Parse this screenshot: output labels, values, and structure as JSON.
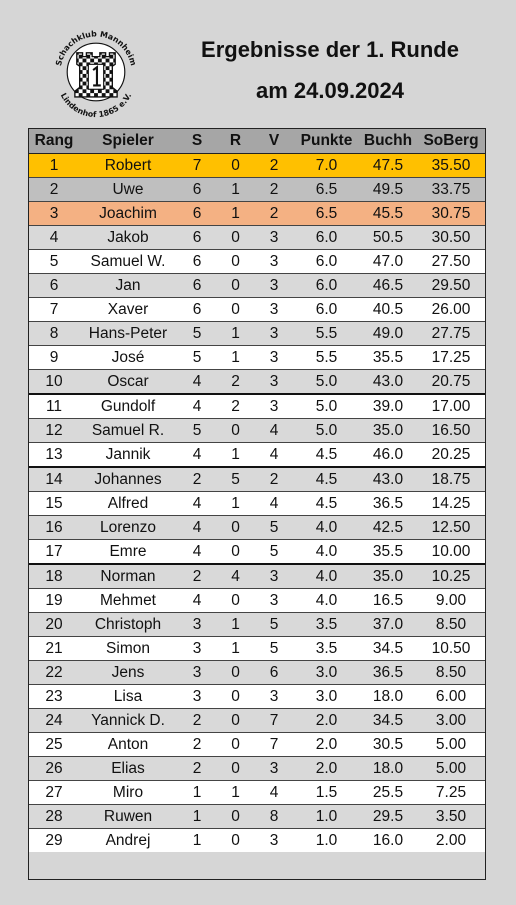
{
  "logo": {
    "top_text": "Schachklub Mannheim",
    "bottom_text": "Lindenhof 1865 e.V."
  },
  "header": {
    "title_line1": "Ergebnisse der 1. Runde",
    "title_line2": "am 24.09.2024"
  },
  "columns": [
    "Rang",
    "Spieler",
    "S",
    "R",
    "V",
    "Punkte",
    "Buchh",
    "SoBerg"
  ],
  "rows": [
    [
      "1",
      "Robert",
      "7",
      "0",
      "2",
      "7.0",
      "47.5",
      "35.50"
    ],
    [
      "2",
      "Uwe",
      "6",
      "1",
      "2",
      "6.5",
      "49.5",
      "33.75"
    ],
    [
      "3",
      "Joachim",
      "6",
      "1",
      "2",
      "6.5",
      "45.5",
      "30.75"
    ],
    [
      "4",
      "Jakob",
      "6",
      "0",
      "3",
      "6.0",
      "50.5",
      "30.50"
    ],
    [
      "5",
      "Samuel W.",
      "6",
      "0",
      "3",
      "6.0",
      "47.0",
      "27.50"
    ],
    [
      "6",
      "Jan",
      "6",
      "0",
      "3",
      "6.0",
      "46.5",
      "29.50"
    ],
    [
      "7",
      "Xaver",
      "6",
      "0",
      "3",
      "6.0",
      "40.5",
      "26.00"
    ],
    [
      "8",
      "Hans-Peter",
      "5",
      "1",
      "3",
      "5.5",
      "49.0",
      "27.75"
    ],
    [
      "9",
      "José",
      "5",
      "1",
      "3",
      "5.5",
      "35.5",
      "17.25"
    ],
    [
      "10",
      "Oscar",
      "4",
      "2",
      "3",
      "5.0",
      "43.0",
      "20.75"
    ],
    [
      "11",
      "Gundolf",
      "4",
      "2",
      "3",
      "5.0",
      "39.0",
      "17.00"
    ],
    [
      "12",
      "Samuel R.",
      "5",
      "0",
      "4",
      "5.0",
      "35.0",
      "16.50"
    ],
    [
      "13",
      "Jannik",
      "4",
      "1",
      "4",
      "4.5",
      "46.0",
      "20.25"
    ],
    [
      "14",
      "Johannes",
      "2",
      "5",
      "2",
      "4.5",
      "43.0",
      "18.75"
    ],
    [
      "15",
      "Alfred",
      "4",
      "1",
      "4",
      "4.5",
      "36.5",
      "14.25"
    ],
    [
      "16",
      "Lorenzo",
      "4",
      "0",
      "5",
      "4.0",
      "42.5",
      "12.50"
    ],
    [
      "17",
      "Emre",
      "4",
      "0",
      "5",
      "4.0",
      "35.5",
      "10.00"
    ],
    [
      "18",
      "Norman",
      "2",
      "4",
      "3",
      "4.0",
      "35.0",
      "10.25"
    ],
    [
      "19",
      "Mehmet",
      "4",
      "0",
      "3",
      "4.0",
      "16.5",
      "9.00"
    ],
    [
      "20",
      "Christoph",
      "3",
      "1",
      "5",
      "3.5",
      "37.0",
      "8.50"
    ],
    [
      "21",
      "Simon",
      "3",
      "1",
      "5",
      "3.5",
      "34.5",
      "10.50"
    ],
    [
      "22",
      "Jens",
      "3",
      "0",
      "6",
      "3.0",
      "36.5",
      "8.50"
    ],
    [
      "23",
      "Lisa",
      "3",
      "0",
      "3",
      "3.0",
      "18.0",
      "6.00"
    ],
    [
      "24",
      "Yannick D.",
      "2",
      "0",
      "7",
      "2.0",
      "34.5",
      "3.00"
    ],
    [
      "25",
      "Anton",
      "2",
      "0",
      "7",
      "2.0",
      "30.5",
      "5.00"
    ],
    [
      "26",
      "Elias",
      "2",
      "0",
      "3",
      "2.0",
      "18.0",
      "5.00"
    ],
    [
      "27",
      "Miro",
      "1",
      "1",
      "4",
      "1.5",
      "25.5",
      "7.25"
    ],
    [
      "28",
      "Ruwen",
      "1",
      "0",
      "8",
      "1.0",
      "29.5",
      "3.50"
    ],
    [
      "29",
      "Andrej",
      "1",
      "0",
      "3",
      "1.0",
      "16.0",
      "2.00"
    ]
  ],
  "colors": {
    "gold": "#ffc000",
    "silver": "#bfbfbf",
    "bronze": "#f4b183",
    "header": "#a6a6a6",
    "page": "#d6d6d6"
  }
}
